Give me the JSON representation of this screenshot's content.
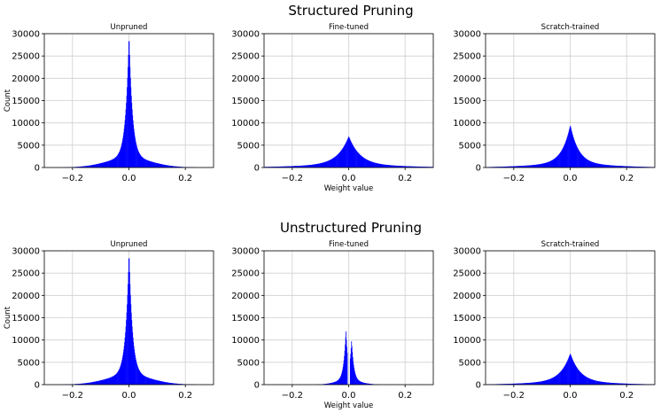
{
  "figure": {
    "sections": [
      {
        "title": "Structured Pruning"
      },
      {
        "title": "Unstructured Pruning"
      }
    ],
    "histogram_color": "#0000ff"
  },
  "chart_data": [
    {
      "type": "histogram",
      "section": "Structured Pruning",
      "title": "Unpruned",
      "xlabel": "",
      "ylabel": "Count",
      "xlim": [
        -0.3,
        0.3
      ],
      "ylim": [
        0,
        30000
      ],
      "xticks": [
        -0.2,
        0.0,
        0.2
      ],
      "xtick_labels": [
        "−0.2",
        "0.0",
        "0.2"
      ],
      "yticks": [
        0,
        5000,
        10000,
        15000,
        20000,
        25000,
        30000
      ],
      "grid": true,
      "peak_x": 0.0,
      "peak_count": 30000,
      "width_scale": 0.012,
      "spread": 0.08,
      "secondary_peak": null
    },
    {
      "type": "histogram",
      "section": "Structured Pruning",
      "title": "Fine-tuned",
      "xlabel": "Weight value",
      "ylabel": "",
      "xlim": [
        -0.3,
        0.3
      ],
      "ylim": [
        0,
        30000
      ],
      "xticks": [
        -0.2,
        0.0,
        0.2
      ],
      "xtick_labels": [
        "−0.2",
        "0.0",
        "0.2"
      ],
      "yticks": [
        0,
        5000,
        10000,
        15000,
        20000,
        25000,
        30000
      ],
      "grid": true,
      "peak_x": 0.0,
      "peak_count": 7000,
      "width_scale": 0.04,
      "spread": 0.18,
      "secondary_peak": null
    },
    {
      "type": "histogram",
      "section": "Structured Pruning",
      "title": "Scratch-trained",
      "xlabel": "",
      "ylabel": "",
      "xlim": [
        -0.3,
        0.3
      ],
      "ylim": [
        0,
        30000
      ],
      "xticks": [
        -0.2,
        0.0,
        0.2
      ],
      "xtick_labels": [
        "−0.2",
        "0.0",
        "0.2"
      ],
      "yticks": [
        0,
        5000,
        10000,
        15000,
        20000,
        25000,
        30000
      ],
      "grid": true,
      "peak_x": 0.0,
      "peak_count": 9500,
      "width_scale": 0.03,
      "spread": 0.15,
      "secondary_peak": null
    },
    {
      "type": "histogram",
      "section": "Unstructured Pruning",
      "title": "Unpruned",
      "xlabel": "",
      "ylabel": "Count",
      "xlim": [
        -0.3,
        0.3
      ],
      "ylim": [
        0,
        30000
      ],
      "xticks": [
        -0.2,
        0.0,
        0.2
      ],
      "xtick_labels": [
        "−0.2",
        "0.0",
        "0.2"
      ],
      "yticks": [
        0,
        5000,
        10000,
        15000,
        20000,
        25000,
        30000
      ],
      "grid": true,
      "peak_x": 0.0,
      "peak_count": 30000,
      "width_scale": 0.012,
      "spread": 0.08,
      "secondary_peak": null
    },
    {
      "type": "histogram",
      "section": "Unstructured Pruning",
      "title": "Fine-tuned",
      "xlabel": "Weight value",
      "ylabel": "",
      "xlim": [
        -0.3,
        0.3
      ],
      "ylim": [
        0,
        30000
      ],
      "xticks": [
        -0.2,
        0.0,
        0.2
      ],
      "xtick_labels": [
        "−0.2",
        "0.0",
        "0.2"
      ],
      "yticks": [
        0,
        5000,
        10000,
        15000,
        20000,
        25000,
        30000
      ],
      "grid": true,
      "bimodal": true,
      "peaks": [
        {
          "x": -0.01,
          "count": 12300
        },
        {
          "x": 0.01,
          "count": 10000
        }
      ],
      "gap": [
        -0.005,
        0.005
      ],
      "width_scale": 0.008,
      "spread": 0.04
    },
    {
      "type": "histogram",
      "section": "Unstructured Pruning",
      "title": "Scratch-trained",
      "xlabel": "",
      "ylabel": "",
      "xlim": [
        -0.3,
        0.3
      ],
      "ylim": [
        0,
        30000
      ],
      "xticks": [
        -0.2,
        0.0,
        0.2
      ],
      "xtick_labels": [
        "−0.2",
        "0.0",
        "0.2"
      ],
      "yticks": [
        0,
        5000,
        10000,
        15000,
        20000,
        25000,
        30000
      ],
      "grid": true,
      "peak_x": 0.0,
      "peak_count": 7000,
      "width_scale": 0.035,
      "spread": 0.15,
      "secondary_peak": null
    }
  ]
}
